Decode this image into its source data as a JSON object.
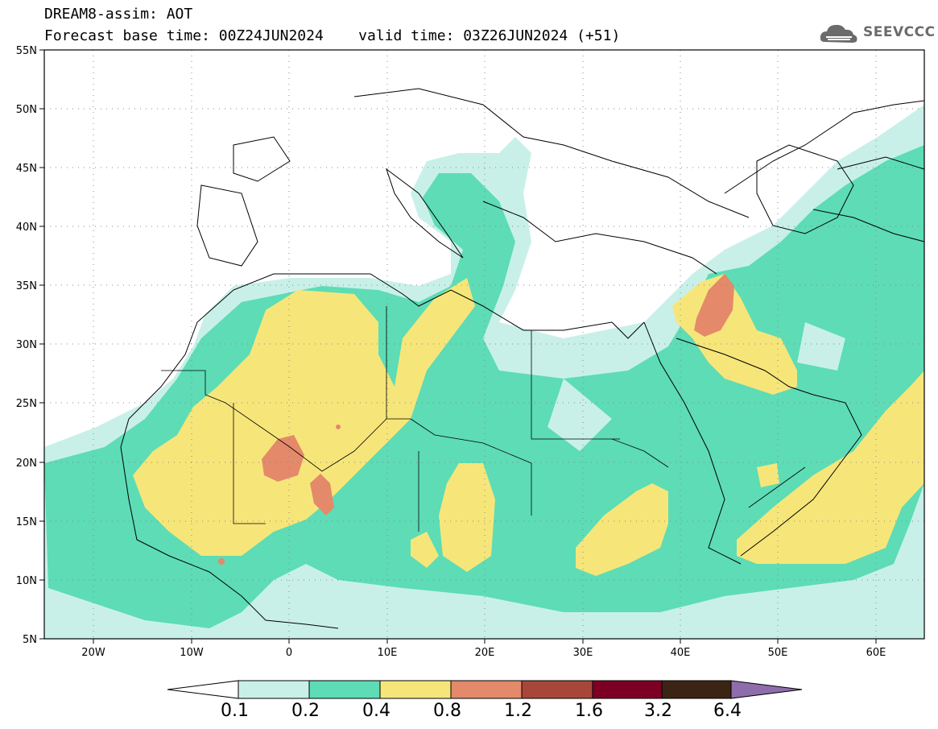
{
  "header": {
    "product_line": "DREAM8-assim: AOT",
    "base_time_label": "Forecast base time:",
    "base_time": "00Z24JUN2024",
    "valid_time_label": "valid time:",
    "valid_time": "03Z26JUN2024",
    "lead": "(+51)"
  },
  "logo": {
    "text": "SEEVCCC",
    "icon": "cloud-icon",
    "color": "#6b6b6b"
  },
  "map": {
    "lon_labels": [
      "20W",
      "10W",
      "0",
      "10E",
      "20E",
      "30E",
      "40E",
      "50E",
      "60E"
    ],
    "lat_labels": [
      "55N",
      "50N",
      "45N",
      "40N",
      "35N",
      "30N",
      "25N",
      "20N",
      "15N",
      "10N",
      "5N"
    ]
  },
  "colorbar": {
    "labels": [
      "0.1",
      "0.2",
      "0.4",
      "0.8",
      "1.2",
      "1.6",
      "3.2",
      "6.4"
    ],
    "colors": [
      "#ffffff",
      "#c8f0e9",
      "#5ddcb6",
      "#f6e67a",
      "#e4896a",
      "#a8463a",
      "#7d0024",
      "#3b2414",
      "#8e6dac"
    ]
  },
  "aot_colors": {
    "lt_0_2": "#c8f0e9",
    "lt_0_4": "#5ddcb6",
    "lt_0_8": "#f6e67a",
    "lt_1_2": "#e4896a"
  }
}
